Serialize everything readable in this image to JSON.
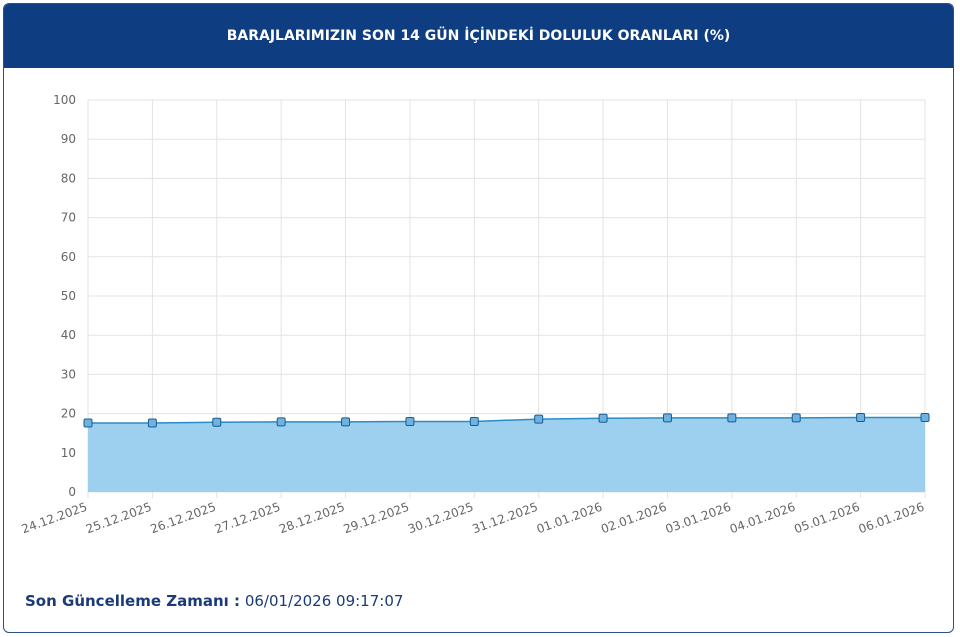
{
  "chart_data": {
    "type": "area",
    "title": "BARAJLARIMIZIN SON 14 GÜN İÇİNDEKİ DOLULUK ORANLARI (%)",
    "categories": [
      "24.12.2025",
      "25.12.2025",
      "26.12.2025",
      "27.12.2025",
      "28.12.2025",
      "29.12.2025",
      "30.12.2025",
      "31.12.2025",
      "01.01.2026",
      "02.01.2026",
      "03.01.2026",
      "04.01.2026",
      "05.01.2026",
      "06.01.2026"
    ],
    "values": [
      17.6,
      17.6,
      17.8,
      17.9,
      17.9,
      18.0,
      18.0,
      18.6,
      18.8,
      18.9,
      18.9,
      18.9,
      19.0,
      19.0
    ],
    "color": "#2b8cc8",
    "area_color": "#9dd0ee",
    "marker_color": "#6cb2e2",
    "ylim": [
      0,
      100
    ],
    "yticks": [
      0,
      10,
      20,
      30,
      40,
      50,
      60,
      70,
      80,
      90,
      100
    ],
    "grid": true
  },
  "footer": {
    "label": "Son Güncelleme Zamanı :",
    "value": "06/01/2026 09:17:07"
  }
}
